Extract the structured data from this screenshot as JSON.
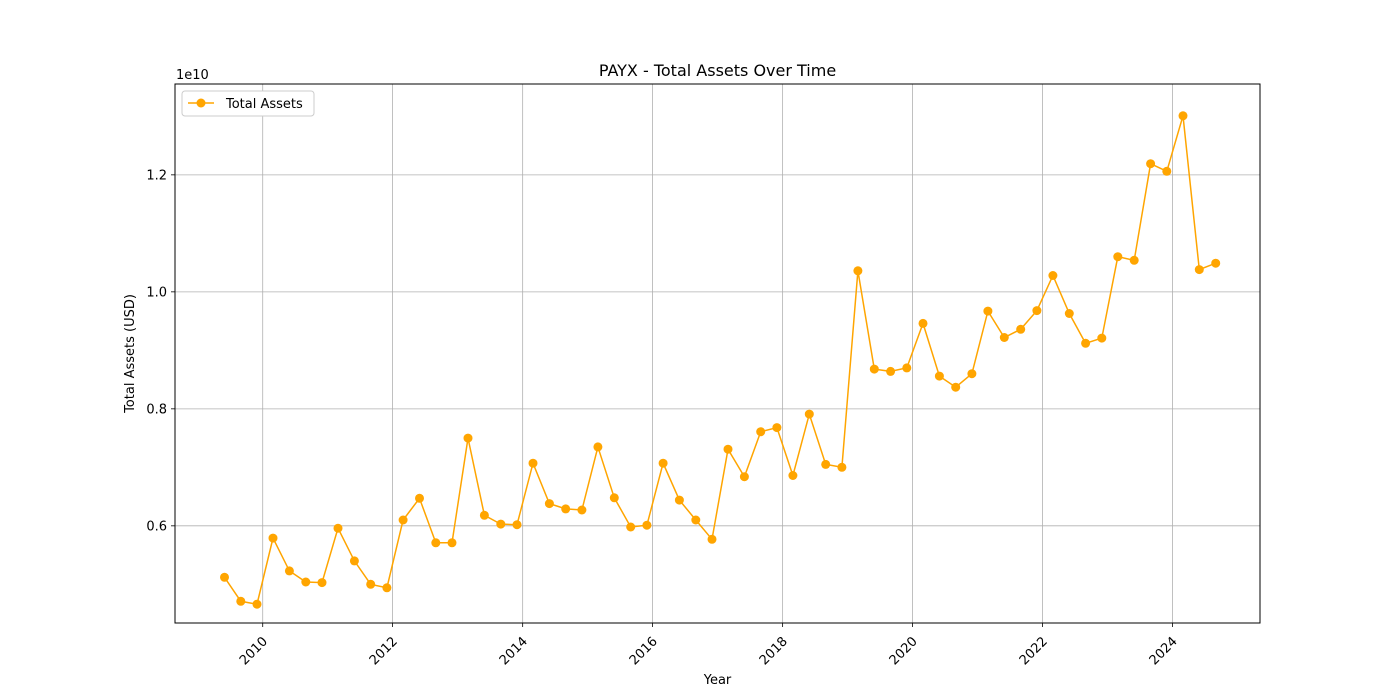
{
  "chart_data": {
    "type": "line",
    "title": "PAYX - Total Assets Over Time",
    "xlabel": "Year",
    "ylabel": "Total Assets (USD)",
    "y_offset_label": "1e10",
    "y_multiplier": 10000000000,
    "xlim": [
      "2008-08-26",
      "2025-05-07"
    ],
    "ylim": [
      0.4339,
      1.3553
    ],
    "x_ticks": [
      "2010",
      "2012",
      "2014",
      "2016",
      "2018",
      "2020",
      "2022",
      "2024"
    ],
    "y_ticks": [
      "0.6",
      "0.8",
      "1.0",
      "1.2"
    ],
    "grid": true,
    "legend_position": "top-left",
    "series": [
      {
        "name": "Total Assets",
        "color": "#FFA500",
        "marker": "circle",
        "x": [
          "2009-05-31",
          "2009-08-31",
          "2009-11-30",
          "2010-02-28",
          "2010-05-31",
          "2010-08-31",
          "2010-11-30",
          "2011-02-28",
          "2011-05-31",
          "2011-08-31",
          "2011-11-30",
          "2012-02-29",
          "2012-05-31",
          "2012-08-31",
          "2012-11-30",
          "2013-02-28",
          "2013-05-31",
          "2013-08-31",
          "2013-11-30",
          "2014-02-28",
          "2014-05-31",
          "2014-08-31",
          "2014-11-30",
          "2015-02-28",
          "2015-05-31",
          "2015-08-31",
          "2015-11-30",
          "2016-02-29",
          "2016-05-31",
          "2016-08-31",
          "2016-11-30",
          "2017-02-28",
          "2017-05-31",
          "2017-08-31",
          "2017-11-30",
          "2018-02-28",
          "2018-05-31",
          "2018-08-31",
          "2018-11-30",
          "2019-02-28",
          "2019-05-31",
          "2019-08-31",
          "2019-11-30",
          "2020-02-29",
          "2020-05-31",
          "2020-08-31",
          "2020-11-30",
          "2021-02-28",
          "2021-05-31",
          "2021-08-31",
          "2021-11-30",
          "2022-02-28",
          "2022-05-31",
          "2022-08-31",
          "2022-11-30",
          "2023-02-28",
          "2023-05-31",
          "2023-08-31",
          "2023-11-30",
          "2024-02-29",
          "2024-05-31",
          "2024-08-31"
        ],
        "values": [
          0.512,
          0.471,
          0.466,
          0.579,
          0.523,
          0.504,
          0.503,
          0.596,
          0.54,
          0.5,
          0.494,
          0.61,
          0.647,
          0.571,
          0.571,
          0.75,
          0.618,
          0.603,
          0.602,
          0.707,
          0.638,
          0.629,
          0.627,
          0.735,
          0.648,
          0.598,
          0.601,
          0.707,
          0.644,
          0.61,
          0.577,
          0.731,
          0.684,
          0.761,
          0.768,
          0.686,
          0.791,
          0.705,
          0.7,
          1.036,
          0.868,
          0.864,
          0.87,
          0.946,
          0.856,
          0.837,
          0.86,
          0.967,
          0.922,
          0.936,
          0.968,
          1.028,
          0.963,
          0.912,
          0.921,
          1.06,
          1.054,
          1.219,
          1.206,
          1.301,
          1.038,
          1.049
        ]
      }
    ]
  }
}
